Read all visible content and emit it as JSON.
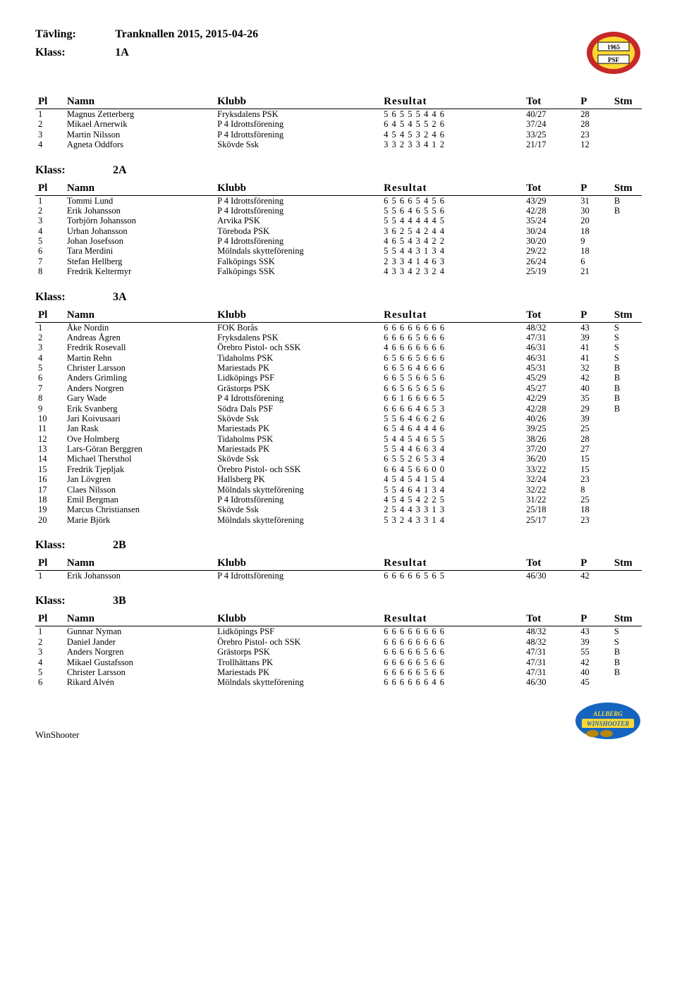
{
  "header": {
    "tavling_label": "Tävling:",
    "tavling_value": "Tranknallen 2015, 2015-04-26",
    "klass_label": "Klass:",
    "first_class": "1A"
  },
  "logo_top": {
    "bg": "#fdd835",
    "ring": "#c62828",
    "text1": "1965",
    "text2": "PSF"
  },
  "columns": {
    "pl": "Pl",
    "namn": "Namn",
    "klubb": "Klubb",
    "resultat": "Resultat",
    "tot": "Tot",
    "p": "P",
    "stm": "Stm"
  },
  "classes": [
    {
      "name": "1A",
      "show_class_header": false,
      "rows": [
        [
          "1",
          "Magnus Zetterberg",
          "Fryksdalens PSK",
          "5 6 5 5 5 4 4 6",
          "40/27",
          "28",
          ""
        ],
        [
          "2",
          "Mikael Arnerwik",
          "P 4 Idrottsförening",
          "6 4 5 4 5 5 2 6",
          "37/24",
          "28",
          ""
        ],
        [
          "3",
          "Martin Nilsson",
          "P 4 Idrottsförening",
          "4 5 4 5 3 2 4 6",
          "33/25",
          "23",
          ""
        ],
        [
          "4",
          "Agneta Oddfors",
          "Skövde Ssk",
          "3 3 2 3 3 4 1 2",
          "21/17",
          "12",
          ""
        ]
      ]
    },
    {
      "name": "2A",
      "show_class_header": true,
      "rows": [
        [
          "1",
          "Tommi Lund",
          "P 4 Idrottsförening",
          "6 5 6 6 5 4 5 6",
          "43/29",
          "31",
          "B"
        ],
        [
          "2",
          "Erik Johansson",
          "P 4 Idrottsförening",
          "5 5 6 4 6 5 5 6",
          "42/28",
          "30",
          "B"
        ],
        [
          "3",
          "Torbjörn Johansson",
          "Arvika PSK",
          "5 5 4 4 4 4 4 5",
          "35/24",
          "20",
          ""
        ],
        [
          "4",
          "Urban Johansson",
          "Töreboda PSK",
          "3 6 2 5 4 2 4 4",
          "30/24",
          "18",
          ""
        ],
        [
          "5",
          "Johan Josefsson",
          "P 4 Idrottsförening",
          "4 6 5 4 3 4 2 2",
          "30/20",
          "9",
          ""
        ],
        [
          "6",
          "Tara Merdini",
          "Mölndals skytteförening",
          "5 5 4 4 3 1 3 4",
          "29/22",
          "18",
          ""
        ],
        [
          "7",
          "Stefan Hellberg",
          "Falköpings SSK",
          "2 3 3 4 1 4 6 3",
          "26/24",
          "6",
          ""
        ],
        [
          "8",
          "Fredrik Keltermyr",
          "Falköpings SSK",
          "4 3 3 4 2 3 2 4",
          "25/19",
          "21",
          ""
        ]
      ]
    },
    {
      "name": "3A",
      "show_class_header": true,
      "rows": [
        [
          "1",
          "Åke Nordin",
          "FOK Borås",
          "6 6 6 6 6 6 6 6",
          "48/32",
          "43",
          "S"
        ],
        [
          "2",
          "Andreas Ågren",
          "Fryksdalens PSK",
          "6 6 6 6 5 6 6 6",
          "47/31",
          "39",
          "S"
        ],
        [
          "3",
          "Fredrik Rosevall",
          "Örebro Pistol- och SSK",
          "4 6 6 6 6 6 6 6",
          "46/31",
          "41",
          "S"
        ],
        [
          "4",
          "Martin Rehn",
          "Tidaholms PSK",
          "6 5 6 6 5 6 6 6",
          "46/31",
          "41",
          "S"
        ],
        [
          "5",
          "Christer Larsson",
          "Mariestads PK",
          "6 6 5 6 4 6 6 6",
          "45/31",
          "32",
          "B"
        ],
        [
          "6",
          "Anders Grimling",
          "Lidköpings PSF",
          "6 6 5 5 6 6 5 6",
          "45/29",
          "42",
          "B"
        ],
        [
          "7",
          "Anders Norgren",
          "Grästorps PSK",
          "6 6 5 6 5 6 5 6",
          "45/27",
          "40",
          "B"
        ],
        [
          "8",
          "Gary Wade",
          "P 4 Idrottsförening",
          "6 6 1 6 6 6 6 5",
          "42/29",
          "35",
          "B"
        ],
        [
          "9",
          "Erik Svanberg",
          "Södra Dals PSF",
          "6 6 6 6 4 6 5 3",
          "42/28",
          "29",
          "B"
        ],
        [
          "10",
          "Jari Koivusaari",
          "Skövde Ssk",
          "5 5 6 4 6 6 2 6",
          "40/26",
          "39",
          ""
        ],
        [
          "11",
          "Jan Rask",
          "Mariestads PK",
          "6 5 4 6 4 4 4 6",
          "39/25",
          "25",
          ""
        ],
        [
          "12",
          "Ove Holmberg",
          "Tidaholms PSK",
          "5 4 4 5 4 6 5 5",
          "38/26",
          "28",
          ""
        ],
        [
          "13",
          "Lars-Göran Berggren",
          "Mariestads PK",
          "5 5 4 4 6 6 3 4",
          "37/20",
          "27",
          ""
        ],
        [
          "14",
          "Michael Thersthol",
          "Skövde Ssk",
          "6 5 5 2 6 5 3 4",
          "36/20",
          "15",
          ""
        ],
        [
          "15",
          "Fredrik Tjepljak",
          "Örebro Pistol- och SSK",
          "6 6 4 5 6 6 0 0",
          "33/22",
          "15",
          ""
        ],
        [
          "16",
          "Jan Lövgren",
          "Hallsberg PK",
          "4 5 4 5 4 1 5 4",
          "32/24",
          "23",
          ""
        ],
        [
          "17",
          "Claes Nilsson",
          "Mölndals skytteförening",
          "5 5 4 6 4 1 3 4",
          "32/22",
          "8",
          ""
        ],
        [
          "18",
          "Emil Bergman",
          "P 4 Idrottsförening",
          "4 5 4 5 4 2 2 5",
          "31/22",
          "25",
          ""
        ],
        [
          "19",
          "Marcus Christiansen",
          "Skövde Ssk",
          "2 5 4 4 3 3 1 3",
          "25/18",
          "18",
          ""
        ],
        [
          "20",
          "Marie Björk",
          "Mölndals skytteförening",
          "5 3 2 4 3 3 1 4",
          "25/17",
          "23",
          ""
        ]
      ]
    },
    {
      "name": "2B",
      "show_class_header": true,
      "rows": [
        [
          "1",
          "Erik Johansson",
          "P 4 Idrottsförening",
          "6 6 6 6 6 5 6 5",
          "46/30",
          "42",
          ""
        ]
      ]
    },
    {
      "name": "3B",
      "show_class_header": true,
      "rows": [
        [
          "1",
          "Gunnar Nyman",
          "Lidköpings PSF",
          "6 6 6 6 6 6 6 6",
          "48/32",
          "43",
          "S"
        ],
        [
          "2",
          "Daniel Jander",
          "Örebro Pistol- och SSK",
          "6 6 6 6 6 6 6 6",
          "48/32",
          "39",
          "S"
        ],
        [
          "3",
          "Anders Norgren",
          "Grästorps PSK",
          "6 6 6 6 6 5 6 6",
          "47/31",
          "55",
          "B"
        ],
        [
          "4",
          "Mikael Gustafsson",
          "Trollhättans PK",
          "6 6 6 6 6 5 6 6",
          "47/31",
          "42",
          "B"
        ],
        [
          "5",
          "Christer Larsson",
          "Mariestads PK",
          "6 6 6 6 6 5 6 6",
          "47/31",
          "40",
          "B"
        ],
        [
          "6",
          "Rikard Alvén",
          "Mölndals skytteförening",
          "6 6 6 6 6 6 4 6",
          "46/30",
          "45",
          ""
        ]
      ]
    }
  ],
  "footer": {
    "text": "WinShooter",
    "logo_text1": "ALLBERG",
    "logo_text2": "WINSHOOTER"
  }
}
